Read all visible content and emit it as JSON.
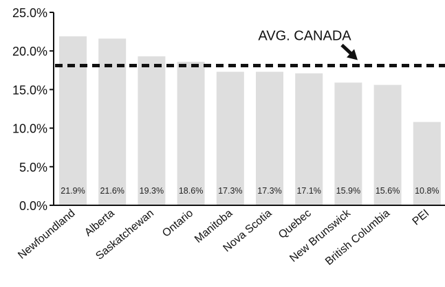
{
  "chart_data": {
    "type": "bar",
    "categories": [
      "Newfoundland",
      "Alberta",
      "Saskatchewan",
      "Ontario",
      "Manitoba",
      "Nova Scotia",
      "Quebec",
      "New Brunswick",
      "British Columbia",
      "PEI"
    ],
    "values": [
      21.9,
      21.6,
      19.3,
      18.6,
      17.3,
      17.3,
      17.1,
      15.9,
      15.6,
      10.8
    ],
    "data_labels": [
      "21.9%",
      "21.6%",
      "19.3%",
      "18.6%",
      "17.3%",
      "17.3%",
      "17.1%",
      "15.9%",
      "15.6%",
      "10.8%"
    ],
    "y_ticks": [
      0,
      5,
      10,
      15,
      20,
      25
    ],
    "y_tick_labels": [
      "0.0%",
      "5.0%",
      "10.0%",
      "15.0%",
      "20.0%",
      "25.0%"
    ],
    "ylim": [
      0,
      25
    ],
    "reference_line": {
      "label": "AVG. CANADA",
      "value": 18.1
    },
    "grid": false,
    "colors": {
      "bar": "#dedede",
      "axis": "#111111",
      "reference": "#111111"
    }
  }
}
